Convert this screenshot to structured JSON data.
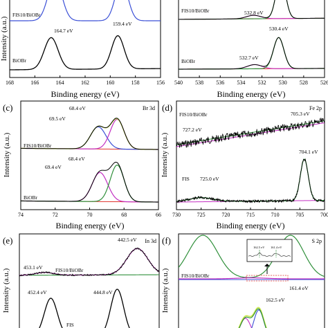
{
  "colors": {
    "envelope": "#000000",
    "component_a": "#2f8f3a",
    "component_b": "#c22fc2",
    "component_c": "#3a4fd6",
    "background": "#e0302a",
    "fit": "#c9e84a"
  },
  "chart_data": [
    {
      "id": "bi4f",
      "type": "line",
      "panel_label": "",
      "core_level": "",
      "xlabel": "Binding energy (eV)",
      "ylabel": "Intensity (a.u.)",
      "xlim": [
        168,
        156
      ],
      "x_ticks": [
        "168",
        "166",
        "164",
        "162",
        "160",
        "158",
        "156"
      ],
      "series": [
        {
          "name": "FIS10/BiOBr",
          "peaks": []
        },
        {
          "name": "BiOBr",
          "peaks": [
            {
              "energy_ev": 164.7,
              "label": "164.7 eV"
            },
            {
              "energy_ev": 159.4,
              "label": "159.4 eV"
            }
          ]
        }
      ]
    },
    {
      "id": "o1s",
      "type": "line",
      "panel_label": "",
      "core_level": "",
      "xlabel": "Binding energy (eV)",
      "ylabel": "",
      "xlim": [
        540,
        526
      ],
      "x_ticks": [
        "540",
        "538",
        "536",
        "534",
        "532",
        "530",
        "528",
        "526"
      ],
      "series": [
        {
          "name": "FIS10/BiOBr",
          "peaks": [
            {
              "energy_ev": 532.8,
              "label": "532.8 eV"
            }
          ]
        },
        {
          "name": "BiOBr",
          "peaks": [
            {
              "energy_ev": 532.7,
              "label": "532.7 eV"
            },
            {
              "energy_ev": 530.4,
              "label": "530.4 eV"
            }
          ]
        }
      ]
    },
    {
      "id": "br3d",
      "type": "line",
      "panel_label": "(c)",
      "core_level": "Br 3d",
      "xlabel": "Binding energy (eV)",
      "ylabel": "Intensity (a.u.)",
      "xlim": [
        74,
        66
      ],
      "x_ticks": [
        "74",
        "72",
        "70",
        "68",
        "66"
      ],
      "series": [
        {
          "name": "FIS10/BiOBr",
          "peaks": [
            {
              "energy_ev": 69.5,
              "label": "69.5 eV"
            },
            {
              "energy_ev": 68.4,
              "label": "68.4 eV"
            }
          ]
        },
        {
          "name": "BiOBr",
          "peaks": [
            {
              "energy_ev": 69.4,
              "label": "69.4 eV"
            },
            {
              "energy_ev": 68.4,
              "label": "68.4 eV"
            }
          ]
        }
      ]
    },
    {
      "id": "fe2p",
      "type": "line",
      "panel_label": "(d)",
      "core_level": "Fe 2p",
      "xlabel": "Binding energy (eV)",
      "ylabel": "Intensity (a.u.)",
      "xlim": [
        730,
        700
      ],
      "x_ticks": [
        "730",
        "725",
        "720",
        "715",
        "710",
        "705",
        "700"
      ],
      "series": [
        {
          "name": "FIS10/BiOBr",
          "peaks": [
            {
              "energy_ev": 727.2,
              "label": "727.2 eV"
            },
            {
              "energy_ev": 705.3,
              "label": "705.3 eV"
            }
          ]
        },
        {
          "name": "FIS",
          "peaks": [
            {
              "energy_ev": 725.0,
              "label": "725.0 eV"
            },
            {
              "energy_ev": 704.1,
              "label": "704.1 eV"
            }
          ]
        }
      ]
    },
    {
      "id": "in3d",
      "type": "line",
      "panel_label": "(e)",
      "core_level": "In 3d",
      "xlabel": "",
      "ylabel": "Intensity (a.u.)",
      "xlim": [
        456,
        440
      ],
      "x_ticks": [],
      "series": [
        {
          "name": "FIS10/BiOBr",
          "peaks": [
            {
              "energy_ev": 453.1,
              "label": "453.1 eV"
            },
            {
              "energy_ev": 442.5,
              "label": "442.5 eV"
            }
          ]
        },
        {
          "name": "FIS",
          "peaks": [
            {
              "energy_ev": 452.4,
              "label": "452.4 eV"
            },
            {
              "energy_ev": 444.8,
              "label": "444.8 eV"
            }
          ]
        }
      ]
    },
    {
      "id": "s2p",
      "type": "line",
      "panel_label": "(f)",
      "core_level": "S 2p",
      "xlabel": "",
      "ylabel": "Intensity (a.u.)",
      "xlim": [
        168,
        156
      ],
      "x_ticks": [],
      "inset_ticks": [
        "162.5 eV",
        "161.4 eV"
      ],
      "series": [
        {
          "name": "FIS10/BiOBr",
          "peaks": []
        },
        {
          "name": "",
          "peaks": [
            {
              "energy_ev": 162.5,
              "label": "162.5 eV"
            },
            {
              "energy_ev": 161.4,
              "label": "161.4 eV"
            }
          ]
        }
      ]
    }
  ]
}
